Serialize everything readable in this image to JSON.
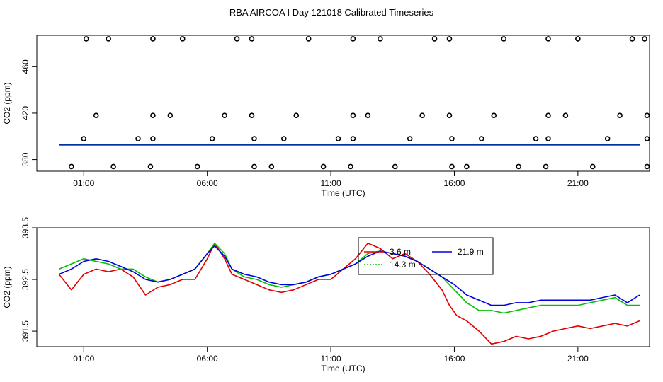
{
  "title": "RBA AIRCOA I  Day 121018  Calibrated Timeseries",
  "colors": {
    "red": "#e00000",
    "green": "#00c000",
    "blue": "#0000dd",
    "axis": "#000000"
  },
  "chart_data": [
    {
      "type": "line",
      "xlabel": "Time (UTC)",
      "ylabel": "CO2 (ppm)",
      "xlim": [
        -0.9,
        23.9
      ],
      "ylim": [
        370,
        487
      ],
      "xticks": [
        1,
        6,
        11,
        16,
        21
      ],
      "xtick_labels": [
        "01:00",
        "06:00",
        "11:00",
        "16:00",
        "21:00"
      ],
      "yticks": [
        380,
        420,
        460
      ],
      "ytick_labels": [
        "380",
        "420",
        "460"
      ],
      "legend": "none",
      "series_line_level": 392.8,
      "outlier_points": [
        {
          "x": 1.1,
          "y": 484
        },
        {
          "x": 2.0,
          "y": 484
        },
        {
          "x": 3.8,
          "y": 484
        },
        {
          "x": 5.0,
          "y": 484
        },
        {
          "x": 7.2,
          "y": 484
        },
        {
          "x": 7.8,
          "y": 484
        },
        {
          "x": 10.1,
          "y": 484
        },
        {
          "x": 11.9,
          "y": 484
        },
        {
          "x": 13.0,
          "y": 484
        },
        {
          "x": 15.2,
          "y": 484
        },
        {
          "x": 15.8,
          "y": 484
        },
        {
          "x": 18.0,
          "y": 484
        },
        {
          "x": 19.8,
          "y": 484
        },
        {
          "x": 21.0,
          "y": 484
        },
        {
          "x": 23.2,
          "y": 484
        },
        {
          "x": 23.7,
          "y": 484
        },
        {
          "x": 1.5,
          "y": 418
        },
        {
          "x": 3.8,
          "y": 418
        },
        {
          "x": 4.5,
          "y": 418
        },
        {
          "x": 6.7,
          "y": 418
        },
        {
          "x": 7.8,
          "y": 418
        },
        {
          "x": 9.6,
          "y": 418
        },
        {
          "x": 11.9,
          "y": 418
        },
        {
          "x": 12.5,
          "y": 418
        },
        {
          "x": 14.7,
          "y": 418
        },
        {
          "x": 15.8,
          "y": 418
        },
        {
          "x": 17.6,
          "y": 418
        },
        {
          "x": 19.8,
          "y": 418
        },
        {
          "x": 20.5,
          "y": 418
        },
        {
          "x": 22.7,
          "y": 418
        },
        {
          "x": 23.8,
          "y": 418
        },
        {
          "x": 1.0,
          "y": 398
        },
        {
          "x": 3.2,
          "y": 398
        },
        {
          "x": 3.8,
          "y": 398
        },
        {
          "x": 6.2,
          "y": 398
        },
        {
          "x": 7.9,
          "y": 398
        },
        {
          "x": 9.1,
          "y": 398
        },
        {
          "x": 11.3,
          "y": 398
        },
        {
          "x": 11.9,
          "y": 398
        },
        {
          "x": 14.2,
          "y": 398
        },
        {
          "x": 15.9,
          "y": 398
        },
        {
          "x": 17.1,
          "y": 398
        },
        {
          "x": 19.3,
          "y": 398
        },
        {
          "x": 19.8,
          "y": 398
        },
        {
          "x": 22.2,
          "y": 398
        },
        {
          "x": 23.8,
          "y": 398
        },
        {
          "x": 0.5,
          "y": 374
        },
        {
          "x": 2.2,
          "y": 374
        },
        {
          "x": 3.7,
          "y": 374
        },
        {
          "x": 5.6,
          "y": 374
        },
        {
          "x": 7.9,
          "y": 374
        },
        {
          "x": 8.6,
          "y": 374
        },
        {
          "x": 10.7,
          "y": 374
        },
        {
          "x": 11.8,
          "y": 374
        },
        {
          "x": 13.6,
          "y": 374
        },
        {
          "x": 15.9,
          "y": 374
        },
        {
          "x": 16.5,
          "y": 374
        },
        {
          "x": 18.6,
          "y": 374
        },
        {
          "x": 19.7,
          "y": 374
        },
        {
          "x": 21.6,
          "y": 374
        },
        {
          "x": 23.8,
          "y": 374
        }
      ]
    },
    {
      "type": "line",
      "xlabel": "Time (UTC)",
      "ylabel": "CO2 (ppm)",
      "xlim": [
        -0.9,
        23.9
      ],
      "ylim": [
        391.2,
        393.5
      ],
      "xticks": [
        1,
        6,
        11,
        16,
        21
      ],
      "xtick_labels": [
        "01:00",
        "06:00",
        "11:00",
        "16:00",
        "21:00"
      ],
      "yticks": [
        391.5,
        392.5,
        393.5
      ],
      "ytick_labels": [
        "391.5",
        "392.5",
        "393.5"
      ],
      "legend": "top-center",
      "legend_labels": [
        "3.6 m",
        "21.9 m",
        "14.3 m"
      ],
      "series": [
        {
          "name": "3.6 m",
          "color": "#e00000",
          "points": [
            [
              0,
              392.6
            ],
            [
              0.5,
              392.3
            ],
            [
              1,
              392.6
            ],
            [
              1.5,
              392.7
            ],
            [
              2,
              392.65
            ],
            [
              2.5,
              392.7
            ],
            [
              3,
              392.55
            ],
            [
              3.5,
              392.2
            ],
            [
              4,
              392.35
            ],
            [
              4.5,
              392.4
            ],
            [
              5,
              392.5
            ],
            [
              5.5,
              392.5
            ],
            [
              6,
              392.9
            ],
            [
              6.3,
              393.2
            ],
            [
              6.7,
              392.9
            ],
            [
              7,
              392.6
            ],
            [
              7.5,
              392.5
            ],
            [
              8,
              392.4
            ],
            [
              8.5,
              392.3
            ],
            [
              9,
              392.25
            ],
            [
              9.5,
              392.3
            ],
            [
              10,
              392.4
            ],
            [
              10.5,
              392.5
            ],
            [
              11,
              392.5
            ],
            [
              11.5,
              392.7
            ],
            [
              12,
              392.9
            ],
            [
              12.5,
              393.2
            ],
            [
              13,
              393.1
            ],
            [
              13.5,
              392.9
            ],
            [
              14,
              393.0
            ],
            [
              14.5,
              392.85
            ],
            [
              15,
              392.6
            ],
            [
              15.5,
              392.3
            ],
            [
              15.8,
              392.0
            ],
            [
              16.1,
              391.8
            ],
            [
              16.5,
              391.7
            ],
            [
              17,
              391.5
            ],
            [
              17.5,
              391.25
            ],
            [
              18,
              391.3
            ],
            [
              18.5,
              391.4
            ],
            [
              19,
              391.35
            ],
            [
              19.5,
              391.4
            ],
            [
              20,
              391.5
            ],
            [
              20.5,
              391.55
            ],
            [
              21,
              391.6
            ],
            [
              21.5,
              391.55
            ],
            [
              22,
              391.6
            ],
            [
              22.5,
              391.65
            ],
            [
              23,
              391.6
            ],
            [
              23.5,
              391.7
            ]
          ]
        },
        {
          "name": "14.3 m",
          "color": "#00c000",
          "points": [
            [
              0,
              392.7
            ],
            [
              0.5,
              392.8
            ],
            [
              1,
              392.9
            ],
            [
              1.5,
              392.85
            ],
            [
              2,
              392.8
            ],
            [
              2.5,
              392.7
            ],
            [
              3,
              392.7
            ],
            [
              3.5,
              392.55
            ],
            [
              4,
              392.45
            ],
            [
              4.5,
              392.5
            ],
            [
              5,
              392.6
            ],
            [
              5.5,
              392.7
            ],
            [
              6,
              393.0
            ],
            [
              6.3,
              393.2
            ],
            [
              6.7,
              393.0
            ],
            [
              7,
              392.7
            ],
            [
              7.5,
              392.55
            ],
            [
              8,
              392.5
            ],
            [
              8.5,
              392.4
            ],
            [
              9,
              392.35
            ],
            [
              9.5,
              392.4
            ],
            [
              10,
              392.45
            ],
            [
              10.5,
              392.55
            ],
            [
              11,
              392.6
            ],
            [
              11.5,
              392.7
            ],
            [
              12,
              392.8
            ],
            [
              12.5,
              393.0
            ],
            [
              13,
              393.05
            ],
            [
              13.5,
              393.0
            ],
            [
              14,
              392.95
            ],
            [
              14.5,
              392.85
            ],
            [
              15,
              392.7
            ],
            [
              15.5,
              392.55
            ],
            [
              16,
              392.3
            ],
            [
              16.5,
              392.05
            ],
            [
              17,
              391.9
            ],
            [
              17.5,
              391.9
            ],
            [
              18,
              391.85
            ],
            [
              18.5,
              391.9
            ],
            [
              19,
              391.95
            ],
            [
              19.5,
              392.0
            ],
            [
              20,
              392.0
            ],
            [
              20.5,
              392.0
            ],
            [
              21,
              392.0
            ],
            [
              21.5,
              392.05
            ],
            [
              22,
              392.1
            ],
            [
              22.5,
              392.15
            ],
            [
              23,
              392.0
            ],
            [
              23.5,
              392.0
            ]
          ]
        },
        {
          "name": "21.9 m",
          "color": "#0000dd",
          "points": [
            [
              0,
              392.6
            ],
            [
              0.5,
              392.7
            ],
            [
              1,
              392.85
            ],
            [
              1.5,
              392.9
            ],
            [
              2,
              392.85
            ],
            [
              2.5,
              392.75
            ],
            [
              3,
              392.65
            ],
            [
              3.5,
              392.5
            ],
            [
              4,
              392.45
            ],
            [
              4.5,
              392.5
            ],
            [
              5,
              392.6
            ],
            [
              5.5,
              392.7
            ],
            [
              6,
              393.0
            ],
            [
              6.3,
              393.15
            ],
            [
              6.7,
              392.95
            ],
            [
              7,
              392.7
            ],
            [
              7.5,
              392.6
            ],
            [
              8,
              392.55
            ],
            [
              8.5,
              392.45
            ],
            [
              9,
              392.4
            ],
            [
              9.5,
              392.4
            ],
            [
              10,
              392.45
            ],
            [
              10.5,
              392.55
            ],
            [
              11,
              392.6
            ],
            [
              11.5,
              392.7
            ],
            [
              12,
              392.8
            ],
            [
              12.5,
              392.95
            ],
            [
              13,
              393.05
            ],
            [
              13.5,
              393.0
            ],
            [
              14,
              392.95
            ],
            [
              14.5,
              392.85
            ],
            [
              15,
              392.7
            ],
            [
              15.5,
              392.55
            ],
            [
              16,
              392.4
            ],
            [
              16.5,
              392.2
            ],
            [
              17,
              392.1
            ],
            [
              17.5,
              392.0
            ],
            [
              18,
              392.0
            ],
            [
              18.5,
              392.05
            ],
            [
              19,
              392.05
            ],
            [
              19.5,
              392.1
            ],
            [
              20,
              392.1
            ],
            [
              20.5,
              392.1
            ],
            [
              21,
              392.1
            ],
            [
              21.5,
              392.1
            ],
            [
              22,
              392.15
            ],
            [
              22.5,
              392.2
            ],
            [
              23,
              392.05
            ],
            [
              23.5,
              392.2
            ]
          ]
        }
      ]
    }
  ]
}
